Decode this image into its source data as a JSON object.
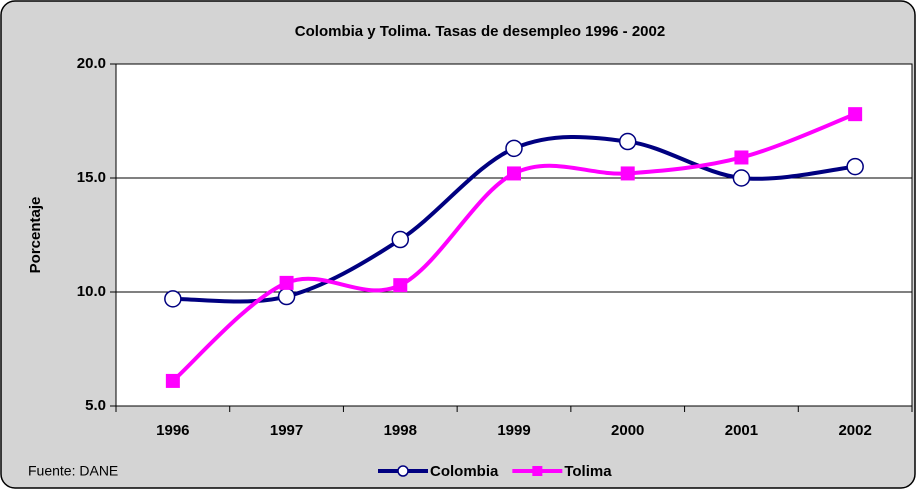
{
  "chart_data": {
    "type": "line",
    "title": "Colombia y Tolima. Tasas de desempleo 1996 - 2002",
    "y_label": "Porcentaje",
    "source": "Fuente: DANE",
    "categories": [
      "1996",
      "1997",
      "1998",
      "1999",
      "2000",
      "2001",
      "2002"
    ],
    "series": [
      {
        "name": "Colombia",
        "color": "#000080",
        "marker": "circle",
        "values": [
          9.7,
          9.8,
          12.3,
          16.3,
          16.6,
          15.0,
          15.5
        ]
      },
      {
        "name": "Tolima",
        "color": "#ff00ff",
        "marker": "square",
        "values": [
          6.1,
          10.4,
          10.3,
          15.2,
          15.2,
          15.9,
          17.8
        ]
      }
    ],
    "ylim": [
      5,
      20
    ],
    "yticks": [
      {
        "value": 5,
        "label": "5.0"
      },
      {
        "value": 10,
        "label": "10.0"
      },
      {
        "value": 15,
        "label": "15.0"
      },
      {
        "value": 20,
        "label": "20.0"
      }
    ],
    "grid": true,
    "smooth": true
  }
}
